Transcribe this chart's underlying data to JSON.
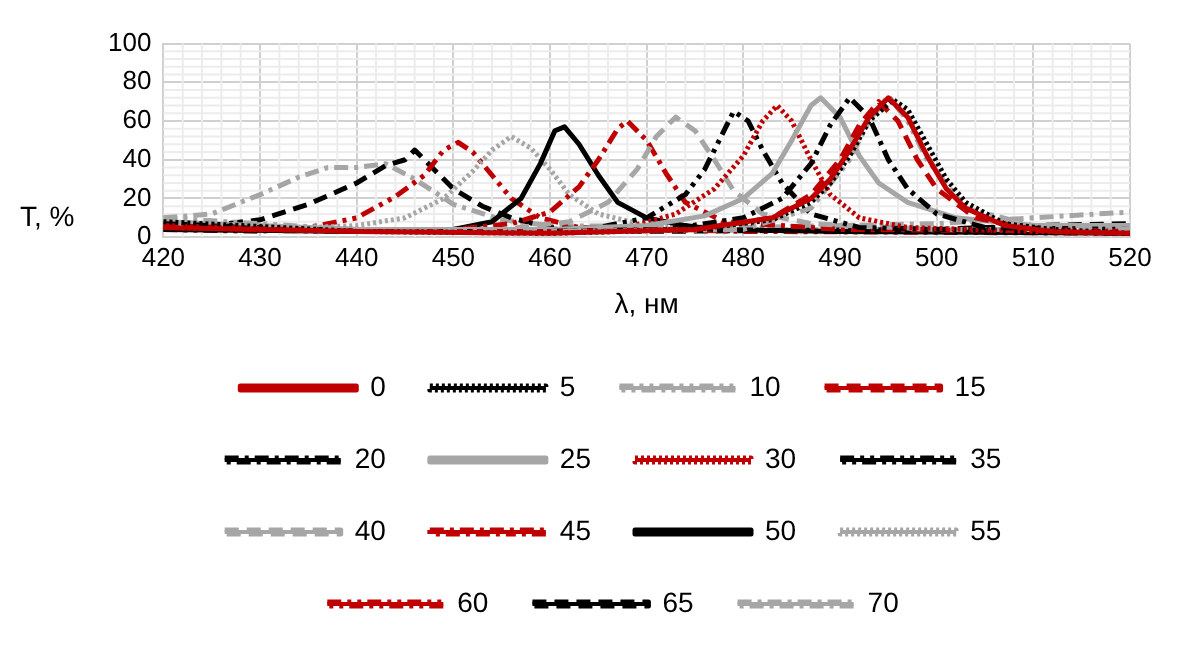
{
  "chart_data": {
    "type": "line",
    "xlabel": "λ, нм",
    "ylabel": "T, %",
    "xlim": [
      420,
      520
    ],
    "xticks": [
      420,
      430,
      440,
      450,
      460,
      470,
      480,
      490,
      500,
      510,
      520
    ],
    "ylim": [
      0,
      100
    ],
    "yticks": [
      0,
      20,
      40,
      60,
      80,
      100
    ],
    "grid": true,
    "legend": "bottom",
    "marker": "none",
    "series": [
      {
        "name": "0",
        "color": "#c00000",
        "line_style": "solid",
        "x": [
          420,
          440,
          460,
          475,
          483,
          487,
          489,
          491,
          493,
          495,
          497,
          499,
          501,
          503,
          507,
          512,
          520
        ],
        "values": [
          5,
          3,
          2,
          4,
          10,
          20,
          30,
          45,
          62,
          72,
          62,
          42,
          25,
          15,
          6,
          3,
          2
        ]
      },
      {
        "name": "5",
        "color": "#000000",
        "line_style": "dotted",
        "x": [
          420,
          440,
          460,
          475,
          483,
          487,
          489,
          491,
          493,
          495.5,
          497,
          499,
          501,
          503,
          507,
          512,
          520
        ],
        "values": [
          8,
          3,
          2,
          4,
          9,
          18,
          28,
          42,
          60,
          71,
          66,
          48,
          30,
          18,
          7,
          4,
          2
        ]
      },
      {
        "name": "10",
        "color": "#a6a6a6",
        "line_style": "dashdotdot",
        "x": [
          420,
          440,
          460,
          480,
          487,
          491,
          493,
          495,
          497,
          499,
          503,
          510,
          520
        ],
        "values": [
          10,
          4,
          3,
          4,
          15,
          40,
          60,
          73,
          60,
          40,
          15,
          6,
          4
        ]
      },
      {
        "name": "15",
        "color": "#c00000",
        "line_style": "dashed",
        "x": [
          420,
          440,
          460,
          475,
          483,
          487,
          490,
          492,
          494,
          496,
          498,
          500,
          504,
          510,
          520
        ],
        "values": [
          6,
          3,
          3,
          4,
          10,
          22,
          40,
          58,
          70,
          60,
          40,
          25,
          10,
          4,
          3
        ]
      },
      {
        "name": "20",
        "color": "#000000",
        "line_style": "dashdot",
        "x": [
          420,
          440,
          460,
          472,
          480,
          484,
          487,
          489,
          491,
          493,
          495,
          497,
          500,
          505,
          520
        ],
        "values": [
          7,
          3,
          3,
          4,
          10,
          20,
          38,
          58,
          72,
          62,
          40,
          25,
          12,
          5,
          4
        ]
      },
      {
        "name": "25",
        "color": "#a6a6a6",
        "line_style": "solid",
        "x": [
          420,
          440,
          460,
          470,
          476,
          480,
          483,
          485,
          487,
          488,
          490,
          492,
          494,
          497,
          502,
          510,
          520
        ],
        "values": [
          8,
          4,
          4,
          6,
          11,
          20,
          33,
          50,
          68,
          72,
          62,
          42,
          28,
          18,
          10,
          6,
          6
        ]
      },
      {
        "name": "30",
        "color": "#c00000",
        "line_style": "dotted",
        "x": [
          420,
          440,
          460,
          468,
          473,
          477,
          480,
          482,
          483.5,
          485,
          487,
          489,
          492,
          497,
          510,
          520
        ],
        "values": [
          5,
          3,
          3,
          5,
          12,
          25,
          42,
          60,
          68,
          60,
          40,
          22,
          10,
          5,
          3,
          2
        ]
      },
      {
        "name": "35",
        "color": "#000000",
        "line_style": "dashdotdot",
        "x": [
          420,
          440,
          455,
          465,
          470,
          474,
          476,
          478,
          479,
          480.5,
          482,
          484,
          487,
          492,
          510,
          520
        ],
        "values": [
          4,
          3,
          3,
          5,
          10,
          22,
          35,
          55,
          65,
          60,
          45,
          28,
          12,
          5,
          3,
          2
        ]
      },
      {
        "name": "40",
        "color": "#a6a6a6",
        "line_style": "dashed",
        "x": [
          420,
          440,
          455,
          462,
          466,
          469,
          471,
          473,
          475,
          477,
          479,
          482,
          487,
          500,
          520
        ],
        "values": [
          6,
          4,
          4,
          8,
          18,
          35,
          52,
          62,
          55,
          40,
          24,
          12,
          7,
          4,
          4
        ]
      },
      {
        "name": "45",
        "color": "#c00000",
        "line_style": "dashdot",
        "x": [
          420,
          440,
          450,
          456,
          460,
          463,
          465,
          467,
          468,
          470,
          472,
          474,
          478,
          490,
          520
        ],
        "values": [
          5,
          4,
          4,
          7,
          13,
          26,
          40,
          56,
          60,
          50,
          33,
          18,
          8,
          4,
          3
        ]
      },
      {
        "name": "50",
        "color": "#000000",
        "line_style": "solid",
        "x": [
          420,
          440,
          450,
          454,
          457,
          459,
          460.5,
          461.5,
          463,
          465,
          467,
          470,
          474,
          477,
          490,
          520
        ],
        "values": [
          4,
          3,
          4,
          8,
          20,
          38,
          55,
          57,
          48,
          32,
          18,
          10,
          6,
          4,
          3,
          2
        ]
      },
      {
        "name": "55",
        "color": "#a6a6a6",
        "line_style": "dotted",
        "x": [
          420,
          430,
          440,
          445,
          449,
          452,
          454,
          456,
          458,
          460,
          462,
          465,
          470,
          480,
          520
        ],
        "values": [
          5,
          4,
          6,
          10,
          20,
          34,
          45,
          52,
          46,
          35,
          22,
          12,
          6,
          4,
          4
        ]
      },
      {
        "name": "60",
        "color": "#c00000",
        "line_style": "dashdotdot",
        "x": [
          420,
          430,
          435,
          440,
          444,
          447,
          449,
          450.5,
          452,
          454,
          456,
          459,
          463,
          480,
          520
        ],
        "values": [
          4,
          3,
          5,
          10,
          21,
          32,
          45,
          49,
          44,
          32,
          20,
          10,
          5,
          3,
          2
        ]
      },
      {
        "name": "65",
        "color": "#000000",
        "line_style": "dashed",
        "x": [
          420,
          425,
          430,
          435,
          440,
          443,
          445,
          446,
          448,
          450,
          453,
          456,
          460,
          470,
          500,
          510,
          520
        ],
        "values": [
          8,
          6,
          9,
          17,
          28,
          37,
          40,
          45,
          35,
          25,
          16,
          10,
          5,
          3,
          4,
          6,
          7
        ]
      },
      {
        "name": "70",
        "color": "#a6a6a6",
        "line_style": "dashdot",
        "x": [
          420,
          425,
          430,
          434,
          437,
          440,
          443,
          446,
          450,
          455,
          460,
          480,
          500,
          510,
          520
        ],
        "values": [
          10,
          12,
          22,
          31,
          36,
          36,
          38,
          30,
          17,
          9,
          6,
          5,
          7,
          10,
          13
        ]
      }
    ]
  }
}
